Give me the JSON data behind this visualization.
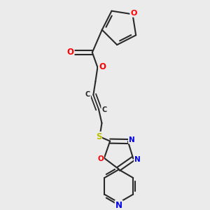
{
  "bg_color": "#ebebeb",
  "atom_colors": {
    "C": "#2a2a2a",
    "O": "#ff0000",
    "N": "#0000ee",
    "S": "#bbbb00",
    "H": "#2a2a2a"
  },
  "bond_color": "#2a2a2a",
  "figsize": [
    3.0,
    3.0
  ],
  "dpi": 100
}
